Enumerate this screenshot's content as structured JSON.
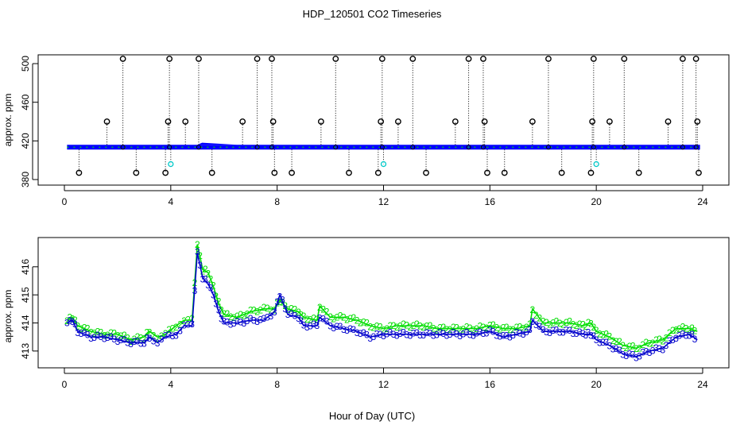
{
  "title": "HDP_120501  CO2 Timeseries",
  "xlabel": "Hour of Day (UTC)",
  "chart_data": [
    {
      "type": "scatter",
      "panel": "top",
      "ylabel": "approx. ppm",
      "xlim": [
        0,
        24
      ],
      "ylim": [
        380,
        505
      ],
      "xticks": [
        "0",
        "4",
        "8",
        "12",
        "16",
        "20",
        "24"
      ],
      "yticks": [
        "380",
        "420",
        "460",
        "500"
      ],
      "baseline_value": 413.5,
      "series": [
        {
          "name": "baseline (blue/green)",
          "color": "#0000ff",
          "x_range": [
            0.1,
            23.9
          ],
          "y_approx": 413.5,
          "bump": {
            "x": [
              5.0,
              6.5
            ],
            "y": 416.5
          }
        },
        {
          "name": "spikes (black circles)",
          "color": "#000000",
          "points": [
            [
              0.55,
              387
            ],
            [
              1.6,
              440
            ],
            [
              2.2,
              505
            ],
            [
              2.7,
              387
            ],
            [
              3.8,
              387
            ],
            [
              3.9,
              440
            ],
            [
              3.95,
              505
            ],
            [
              4.55,
              440
            ],
            [
              5.05,
              505
            ],
            [
              5.55,
              387
            ],
            [
              6.7,
              440
            ],
            [
              7.25,
              505
            ],
            [
              7.8,
              505
            ],
            [
              7.85,
              440
            ],
            [
              7.9,
              387
            ],
            [
              8.55,
              387
            ],
            [
              9.65,
              440
            ],
            [
              10.2,
              505
            ],
            [
              10.7,
              387
            ],
            [
              11.8,
              387
            ],
            [
              11.9,
              440
            ],
            [
              11.95,
              505
            ],
            [
              12.55,
              440
            ],
            [
              13.1,
              505
            ],
            [
              13.6,
              387
            ],
            [
              14.7,
              440
            ],
            [
              15.2,
              505
            ],
            [
              15.75,
              505
            ],
            [
              15.8,
              440
            ],
            [
              15.9,
              387
            ],
            [
              16.55,
              387
            ],
            [
              17.6,
              440
            ],
            [
              18.2,
              505
            ],
            [
              18.7,
              387
            ],
            [
              19.8,
              387
            ],
            [
              19.85,
              440
            ],
            [
              19.9,
              505
            ],
            [
              20.5,
              440
            ],
            [
              21.05,
              505
            ],
            [
              21.6,
              387
            ],
            [
              22.7,
              440
            ],
            [
              23.25,
              505
            ],
            [
              23.75,
              505
            ],
            [
              23.8,
              440
            ],
            [
              23.85,
              387
            ]
          ]
        },
        {
          "name": "cyan markers",
          "color": "#00c8c8",
          "points": [
            [
              4.0,
              396
            ],
            [
              12.0,
              396
            ],
            [
              20.0,
              396
            ]
          ]
        }
      ]
    },
    {
      "type": "line",
      "panel": "bottom",
      "ylabel": "approx. ppm",
      "xlim": [
        0,
        24
      ],
      "ylim": [
        412.6,
        416.9
      ],
      "xticks": [
        "0",
        "4",
        "8",
        "12",
        "16",
        "20",
        "24"
      ],
      "yticks": [
        "413",
        "414",
        "415",
        "416"
      ],
      "marker_labels": [
        "2",
        "3"
      ],
      "series": [
        {
          "name": "2",
          "color": "#00dd00",
          "points": [
            [
              0.1,
              414.1
            ],
            [
              0.3,
              414.2
            ],
            [
              0.5,
              413.9
            ],
            [
              1.0,
              413.7
            ],
            [
              1.5,
              413.6
            ],
            [
              2.0,
              413.6
            ],
            [
              2.5,
              413.4
            ],
            [
              3.0,
              413.5
            ],
            [
              3.2,
              413.7
            ],
            [
              3.5,
              413.5
            ],
            [
              3.8,
              413.6
            ],
            [
              4.2,
              413.9
            ],
            [
              4.5,
              414.1
            ],
            [
              4.8,
              414.1
            ],
            [
              5.0,
              416.8
            ],
            [
              5.2,
              415.9
            ],
            [
              5.4,
              415.8
            ],
            [
              5.6,
              415.3
            ],
            [
              5.8,
              414.7
            ],
            [
              6.0,
              414.3
            ],
            [
              6.5,
              414.2
            ],
            [
              7.0,
              414.4
            ],
            [
              7.5,
              414.5
            ],
            [
              7.9,
              414.5
            ],
            [
              8.1,
              414.8
            ],
            [
              8.4,
              414.5
            ],
            [
              8.8,
              414.4
            ],
            [
              9.0,
              414.2
            ],
            [
              9.5,
              414.1
            ],
            [
              9.6,
              414.6
            ],
            [
              10.0,
              414.2
            ],
            [
              10.5,
              414.2
            ],
            [
              11.0,
              414.1
            ],
            [
              11.5,
              413.9
            ],
            [
              12.0,
              413.8
            ],
            [
              12.5,
              413.9
            ],
            [
              13.0,
              413.9
            ],
            [
              13.5,
              413.9
            ],
            [
              14.0,
              413.8
            ],
            [
              14.5,
              413.8
            ],
            [
              15.0,
              413.8
            ],
            [
              15.5,
              413.8
            ],
            [
              16.0,
              413.9
            ],
            [
              16.5,
              413.8
            ],
            [
              17.0,
              413.8
            ],
            [
              17.5,
              413.9
            ],
            [
              17.6,
              414.5
            ],
            [
              18.0,
              414.0
            ],
            [
              18.5,
              414.0
            ],
            [
              19.0,
              414.0
            ],
            [
              19.5,
              413.9
            ],
            [
              19.8,
              414.0
            ],
            [
              20.0,
              413.7
            ],
            [
              20.5,
              413.5
            ],
            [
              21.0,
              413.2
            ],
            [
              21.5,
              413.1
            ],
            [
              22.0,
              413.3
            ],
            [
              22.5,
              413.4
            ],
            [
              23.0,
              413.8
            ],
            [
              23.5,
              413.8
            ],
            [
              23.8,
              413.7
            ]
          ]
        },
        {
          "name": "3",
          "color": "#0000cc",
          "points": [
            [
              0.1,
              414.0
            ],
            [
              0.3,
              414.1
            ],
            [
              0.5,
              413.7
            ],
            [
              1.0,
              413.5
            ],
            [
              1.5,
              413.5
            ],
            [
              2.0,
              413.4
            ],
            [
              2.5,
              413.3
            ],
            [
              3.0,
              413.3
            ],
            [
              3.2,
              413.5
            ],
            [
              3.5,
              413.3
            ],
            [
              3.8,
              413.5
            ],
            [
              4.2,
              413.6
            ],
            [
              4.5,
              413.9
            ],
            [
              4.8,
              413.9
            ],
            [
              5.0,
              416.5
            ],
            [
              5.2,
              415.6
            ],
            [
              5.4,
              415.4
            ],
            [
              5.6,
              415.0
            ],
            [
              5.8,
              414.4
            ],
            [
              6.0,
              414.0
            ],
            [
              6.5,
              414.0
            ],
            [
              7.0,
              414.1
            ],
            [
              7.5,
              414.1
            ],
            [
              7.9,
              414.4
            ],
            [
              8.1,
              415.0
            ],
            [
              8.4,
              414.3
            ],
            [
              8.8,
              414.2
            ],
            [
              9.0,
              413.9
            ],
            [
              9.5,
              413.9
            ],
            [
              9.6,
              414.2
            ],
            [
              10.0,
              413.9
            ],
            [
              10.5,
              413.8
            ],
            [
              11.0,
              413.7
            ],
            [
              11.5,
              413.5
            ],
            [
              12.0,
              413.6
            ],
            [
              12.5,
              413.6
            ],
            [
              13.0,
              413.6
            ],
            [
              13.5,
              413.6
            ],
            [
              14.0,
              413.6
            ],
            [
              14.5,
              413.6
            ],
            [
              15.0,
              413.6
            ],
            [
              15.5,
              413.6
            ],
            [
              16.0,
              413.7
            ],
            [
              16.5,
              413.5
            ],
            [
              17.0,
              413.6
            ],
            [
              17.5,
              413.7
            ],
            [
              17.6,
              414.1
            ],
            [
              18.0,
              413.7
            ],
            [
              18.5,
              413.7
            ],
            [
              19.0,
              413.7
            ],
            [
              19.5,
              413.6
            ],
            [
              19.8,
              413.6
            ],
            [
              20.0,
              413.4
            ],
            [
              20.5,
              413.2
            ],
            [
              21.0,
              412.9
            ],
            [
              21.5,
              412.8
            ],
            [
              22.0,
              413.0
            ],
            [
              22.5,
              413.1
            ],
            [
              23.0,
              413.5
            ],
            [
              23.5,
              413.6
            ],
            [
              23.8,
              413.4
            ]
          ]
        }
      ]
    }
  ]
}
